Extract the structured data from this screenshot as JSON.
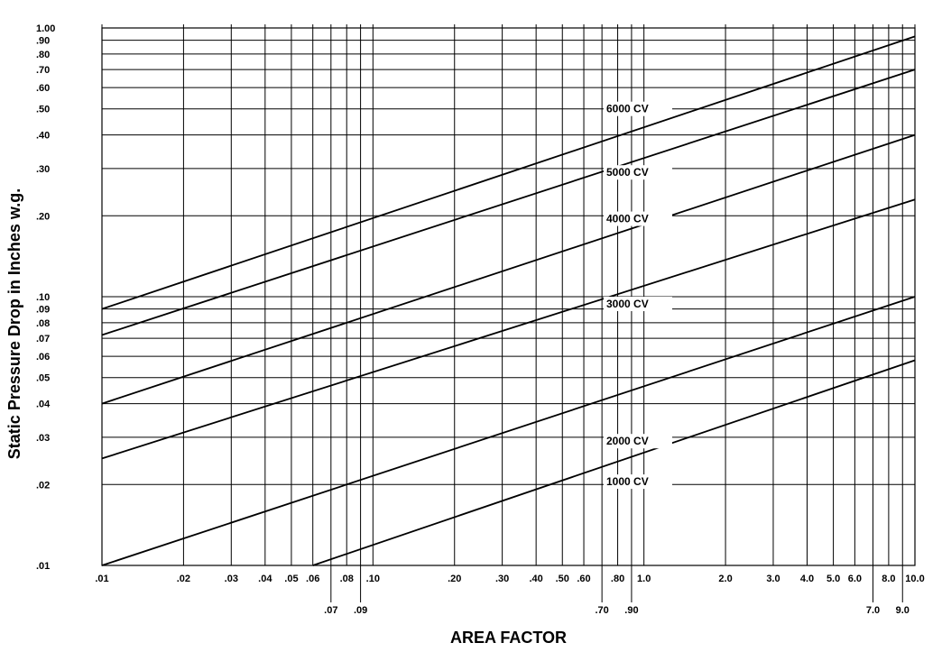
{
  "chart_data": {
    "type": "line",
    "xlabel": "AREA FACTOR",
    "ylabel": "Static Pressure Drop in Inches w.g.",
    "xscale": "log",
    "yscale": "log",
    "xlim": [
      0.01,
      10.0
    ],
    "ylim": [
      0.01,
      1.0
    ],
    "grid": true,
    "x_ticks_upper": [
      ".01",
      ".02",
      ".03",
      ".04",
      ".05",
      ".06",
      ".08",
      ".10",
      ".20",
      ".30",
      ".40",
      ".50",
      ".60",
      ".80",
      "1.0",
      "2.0",
      "3.0",
      "4.0",
      "5.0",
      "6.0",
      "8.0",
      "10.0"
    ],
    "x_ticks_lower": [
      ".07",
      ".09",
      ".70",
      ".90",
      "7.0",
      "9.0"
    ],
    "y_ticks": [
      "1.00",
      ".90",
      ".80",
      ".70",
      ".60",
      ".50",
      ".40",
      ".30",
      ".20",
      ".10",
      ".09",
      ".08",
      ".07",
      ".06",
      ".05",
      ".04",
      ".03",
      ".02",
      ".01"
    ],
    "series": [
      {
        "name": "6000 CV",
        "x": [
          0.01,
          10.0
        ],
        "y": [
          0.09,
          0.93
        ]
      },
      {
        "name": "5000 CV",
        "x": [
          0.01,
          10.0
        ],
        "y": [
          0.072,
          0.7
        ]
      },
      {
        "name": "4000 CV",
        "x": [
          0.01,
          10.0
        ],
        "y": [
          0.04,
          0.4
        ]
      },
      {
        "name": "3000 CV",
        "x": [
          0.01,
          10.0
        ],
        "y": [
          0.025,
          0.23
        ]
      },
      {
        "name": "2000 CV",
        "x": [
          0.01,
          10.0
        ],
        "y": [
          0.01,
          0.1
        ]
      },
      {
        "name": "1000 CV",
        "x": [
          0.06,
          10.0
        ],
        "y": [
          0.01,
          0.058
        ]
      }
    ],
    "annotations": [
      "6000 CV",
      "5000 CV",
      "4000 CV",
      "3000 CV",
      "2000 CV",
      "1000 CV"
    ]
  }
}
